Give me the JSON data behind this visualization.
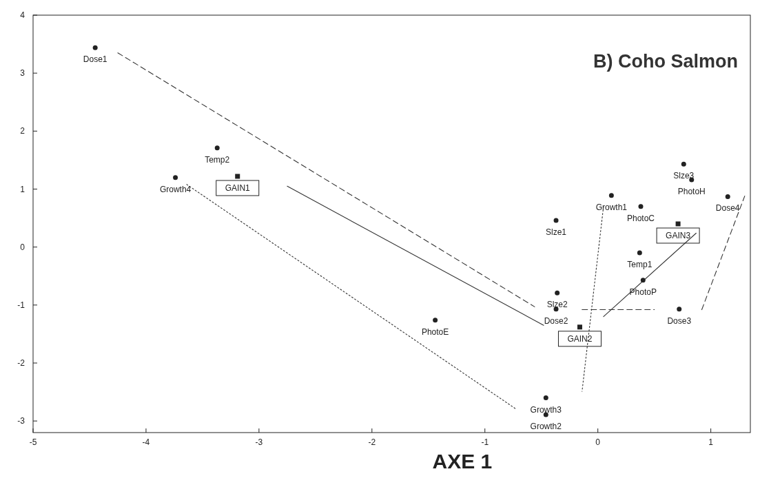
{
  "chart_data": {
    "type": "line",
    "title": "B) Coho Salmon",
    "xlabel": "AXE 1",
    "xlim": [
      -5,
      1.35
    ],
    "ylim": [
      -3.2,
      4
    ],
    "xticks": [
      -5,
      -4,
      -3,
      -2,
      -1,
      0,
      1
    ],
    "yticks": [
      -3,
      -2,
      -1,
      0,
      1,
      2,
      3,
      4
    ],
    "grid": false,
    "series": [
      {
        "x": [
          -4.25,
          -0.56
        ],
        "values": [
          3.35,
          -1.03
        ],
        "color": "#333333",
        "line_style": "dashed"
      },
      {
        "x": [
          -0.14,
          0.5
        ],
        "values": [
          -1.08,
          -1.08
        ],
        "color": "#333333",
        "line_style": "dashed"
      },
      {
        "x": [
          0.92,
          1.3
        ],
        "values": [
          -1.08,
          0.88
        ],
        "color": "#333333",
        "line_style": "dashed"
      },
      {
        "x": [
          -2.75,
          -0.48
        ],
        "values": [
          1.05,
          -1.35
        ],
        "color": "#333333",
        "line_style": "solid"
      },
      {
        "x": [
          0.05,
          0.87
        ],
        "values": [
          -1.2,
          0.24
        ],
        "color": "#333333",
        "line_style": "solid"
      },
      {
        "x": [
          -3.64,
          -0.72
        ],
        "values": [
          1.08,
          -2.8
        ],
        "color": "#333333",
        "line_style": "dotted"
      },
      {
        "x": [
          0.05,
          -0.14
        ],
        "values": [
          0.7,
          -2.49
        ],
        "color": "#333333",
        "line_style": "dotted"
      },
      {
        "type": "scatter",
        "marker": "square",
        "color": "#222222",
        "x": [
          -3.19,
          -0.16,
          0.71
        ],
        "values": [
          1.22,
          -1.38,
          0.4
        ],
        "value_labels": [
          "GAIN1",
          "GAIN2",
          "GAIN3"
        ]
      },
      {
        "type": "scatter",
        "marker": "circle",
        "color": "#222222",
        "x": [
          -4.45,
          -3.37,
          -3.74,
          -0.37,
          0.12,
          0.38,
          0.76,
          0.83,
          1.15,
          0.37,
          0.4,
          -0.36,
          -0.37,
          0.72,
          -1.44,
          -0.46,
          -0.46
        ],
        "values": [
          3.44,
          1.71,
          1.2,
          0.46,
          0.89,
          0.7,
          1.43,
          1.16,
          0.87,
          -0.1,
          -0.57,
          -0.79,
          -1.07,
          -1.07,
          -1.26,
          -2.6,
          -2.89
        ],
        "value_labels": [
          "Dose1",
          "Temp2",
          "Growth4",
          "Slze1",
          "Growth1",
          "PhotoC",
          "Slze3",
          "PhotoH",
          "Dose4",
          "Temp1",
          "PhotoP",
          "Slze2",
          "Dose2",
          "Dose3",
          "PhotoE",
          "Growth3",
          "Growth2"
        ]
      }
    ]
  }
}
